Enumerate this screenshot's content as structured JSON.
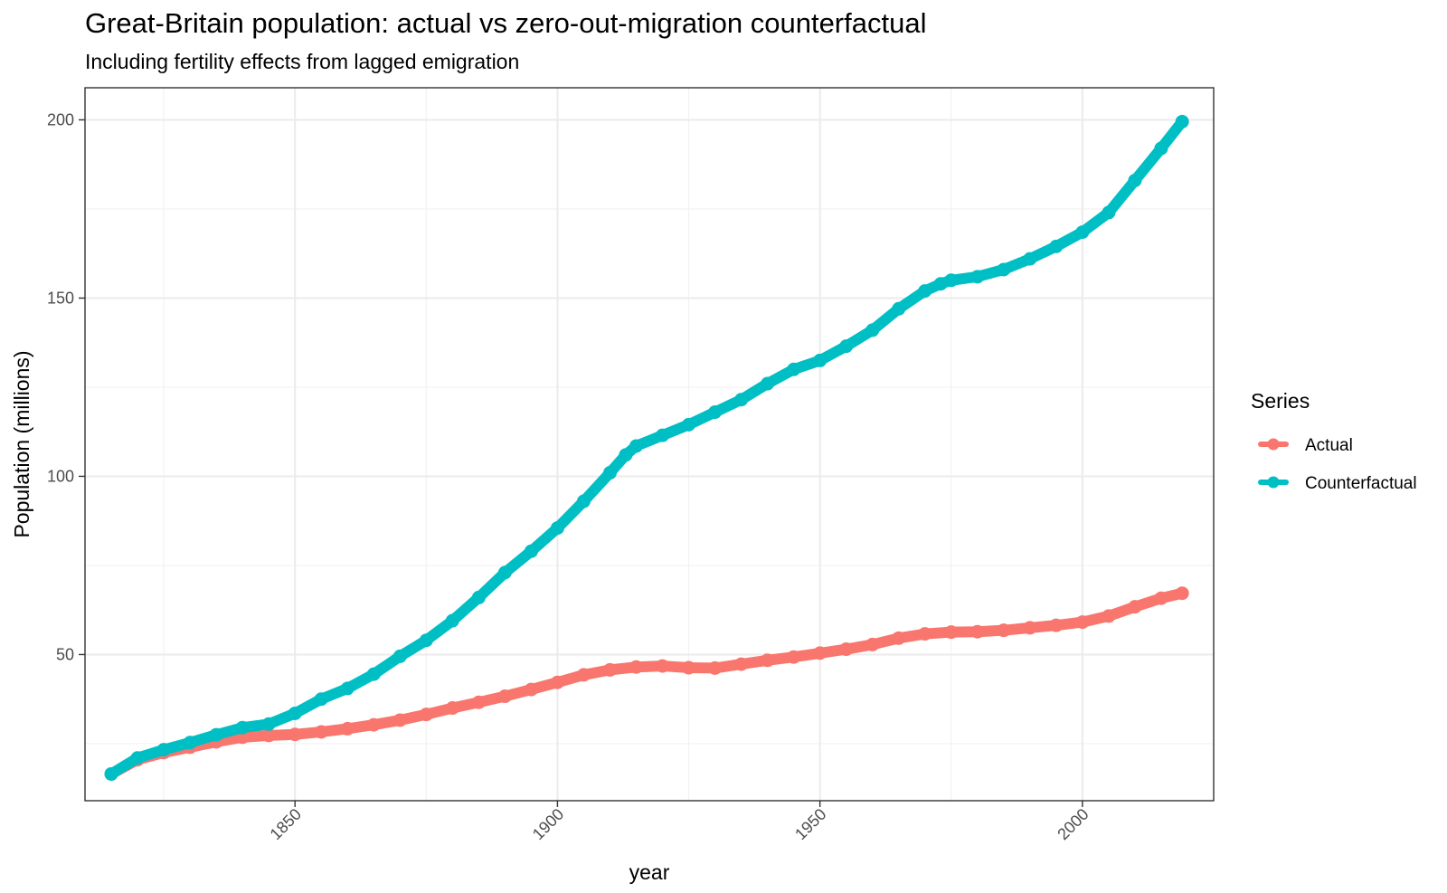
{
  "chart_data": {
    "type": "line",
    "title": "Great-Britain population: actual vs zero-out-migration counterfactual",
    "subtitle": "Including fertility effects from lagged emigration",
    "xlabel": "year",
    "ylabel": "Population (millions)",
    "xlim": [
      1810,
      2025
    ],
    "ylim": [
      9,
      209
    ],
    "x_ticks": [
      1850,
      1900,
      1950,
      2000
    ],
    "x_tick_labels": [
      "1850",
      "1900",
      "1950",
      "2000"
    ],
    "y_ticks": [
      50,
      100,
      150,
      200
    ],
    "y_tick_labels": [
      "50",
      "100",
      "150",
      "200"
    ],
    "grid": true,
    "legend": {
      "title": "Series",
      "position": "right"
    },
    "series": [
      {
        "name": "Actual",
        "color": "#F8766D",
        "x": [
          1815,
          1820,
          1825,
          1830,
          1835,
          1840,
          1845,
          1850,
          1855,
          1860,
          1865,
          1870,
          1875,
          1880,
          1885,
          1890,
          1895,
          1900,
          1905,
          1910,
          1915,
          1920,
          1925,
          1930,
          1935,
          1940,
          1945,
          1950,
          1955,
          1960,
          1965,
          1970,
          1975,
          1980,
          1985,
          1990,
          1995,
          2000,
          2005,
          2010,
          2015,
          2019
        ],
        "values": [
          16.5,
          20.5,
          22.5,
          24,
          25.5,
          26.8,
          27.3,
          27.6,
          28.3,
          29.2,
          30.3,
          31.6,
          33.2,
          35,
          36.6,
          38.3,
          40.2,
          42.2,
          44.3,
          45.7,
          46.5,
          46.8,
          46.3,
          46.2,
          47.3,
          48.4,
          49.3,
          50.4,
          51.5,
          52.8,
          54.6,
          55.8,
          56.3,
          56.4,
          56.8,
          57.5,
          58.2,
          59.1,
          60.8,
          63.4,
          65.8,
          67.2
        ]
      },
      {
        "name": "Counterfactual",
        "color": "#00BFC4",
        "x": [
          1815,
          1820,
          1825,
          1830,
          1835,
          1840,
          1845,
          1850,
          1855,
          1860,
          1865,
          1870,
          1875,
          1880,
          1885,
          1890,
          1895,
          1900,
          1905,
          1910,
          1913,
          1915,
          1920,
          1925,
          1930,
          1935,
          1940,
          1945,
          1950,
          1955,
          1960,
          1965,
          1970,
          1973,
          1975,
          1980,
          1985,
          1990,
          1995,
          2000,
          2005,
          2010,
          2015,
          2019
        ],
        "values": [
          16.5,
          21,
          23.3,
          25.3,
          27.5,
          29.5,
          30.5,
          33.5,
          37.5,
          40.5,
          44.5,
          49.5,
          54,
          59.5,
          66,
          73,
          79,
          85.5,
          93,
          101,
          106,
          108.5,
          111.5,
          114.5,
          118,
          121.5,
          126,
          130,
          132.5,
          136.5,
          141,
          147,
          152,
          154,
          155,
          156,
          158,
          161,
          164.5,
          168.5,
          174,
          183,
          192,
          199.5
        ]
      }
    ]
  }
}
